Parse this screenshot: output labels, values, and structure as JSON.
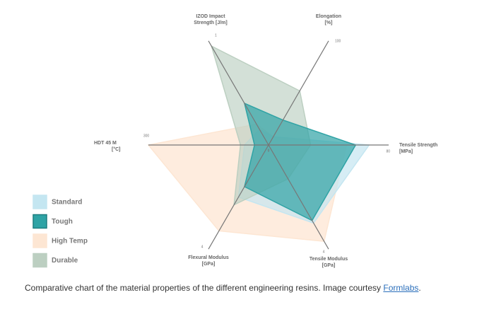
{
  "chart_data": {
    "type": "radar",
    "axes": [
      {
        "label": [
          "IZOD Impact",
          "Strength [J/m]"
        ],
        "max": 1
      },
      {
        "label": [
          "Elongation",
          "[%]"
        ],
        "max": 100
      },
      {
        "label": [
          "Tensile Strength",
          "[MPa]"
        ],
        "max": 80
      },
      {
        "label": [
          "Tensile Modulus",
          "[GPa]"
        ],
        "max": 4
      },
      {
        "label": [
          "Flexural Modulus",
          "[GPa]"
        ],
        "max": 4
      },
      {
        "label": [
          "HDT     45 M",
          "[°C]"
        ],
        "max": 300
      }
    ],
    "axis_min": 0,
    "series": [
      {
        "name": "Standard",
        "color": "#c4e6f1",
        "values": [
          0.15,
          8,
          67,
          3.0,
          2.0,
          60
        ]
      },
      {
        "name": "Tough",
        "color": "#2fa3a5",
        "values": [
          0.4,
          24,
          58,
          2.9,
          1.6,
          35
        ]
      },
      {
        "name": "High Temp",
        "color": "#fde6d3",
        "values": [
          0.2,
          8,
          52,
          3.7,
          3.3,
          300
        ]
      },
      {
        "name": "Durable",
        "color": "#bccfc1",
        "values": [
          0.95,
          52,
          28,
          1.3,
          2.3,
          70
        ]
      }
    ]
  },
  "caption": {
    "text": "Comparative chart of the material properties of the different engineering resins. Image courtesy ",
    "link": "Formlabs",
    "end": "."
  }
}
